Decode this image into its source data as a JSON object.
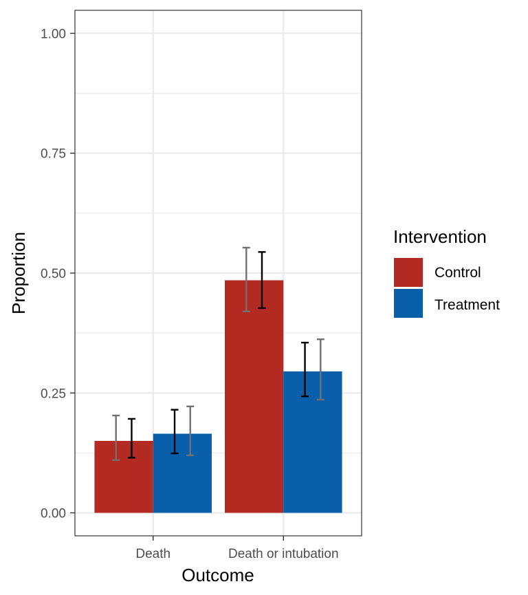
{
  "chart_data": {
    "type": "bar",
    "categories": [
      "Death",
      "Death or intubation"
    ],
    "series": [
      {
        "name": "Control",
        "color": "#b22a22",
        "values": [
          0.15,
          0.485
        ],
        "intervals_gray": [
          [
            0.11,
            0.203
          ],
          [
            0.42,
            0.553
          ]
        ],
        "intervals_black": [
          [
            0.115,
            0.196
          ],
          [
            0.427,
            0.544
          ]
        ]
      },
      {
        "name": "Treatment",
        "color": "#0a5fab",
        "values": [
          0.165,
          0.295
        ],
        "intervals_black": [
          [
            0.124,
            0.215
          ],
          [
            0.243,
            0.355
          ]
        ],
        "intervals_gray": [
          [
            0.12,
            0.222
          ],
          [
            0.236,
            0.362
          ]
        ]
      }
    ],
    "xlabel": "Outcome",
    "ylabel": "Proportion",
    "ylim": [
      -0.048,
      1.048
    ],
    "yticks": [
      "0.00",
      "0.25",
      "0.50",
      "0.75",
      "1.00"
    ],
    "yticks_values": [
      0,
      0.25,
      0.5,
      0.75,
      1.0
    ],
    "legend": {
      "title": "Intervention",
      "entries": [
        "Control",
        "Treatment"
      ],
      "position": "right"
    },
    "grid": true,
    "interval_colors": {
      "gray": "#707070",
      "black": "#000000"
    }
  }
}
